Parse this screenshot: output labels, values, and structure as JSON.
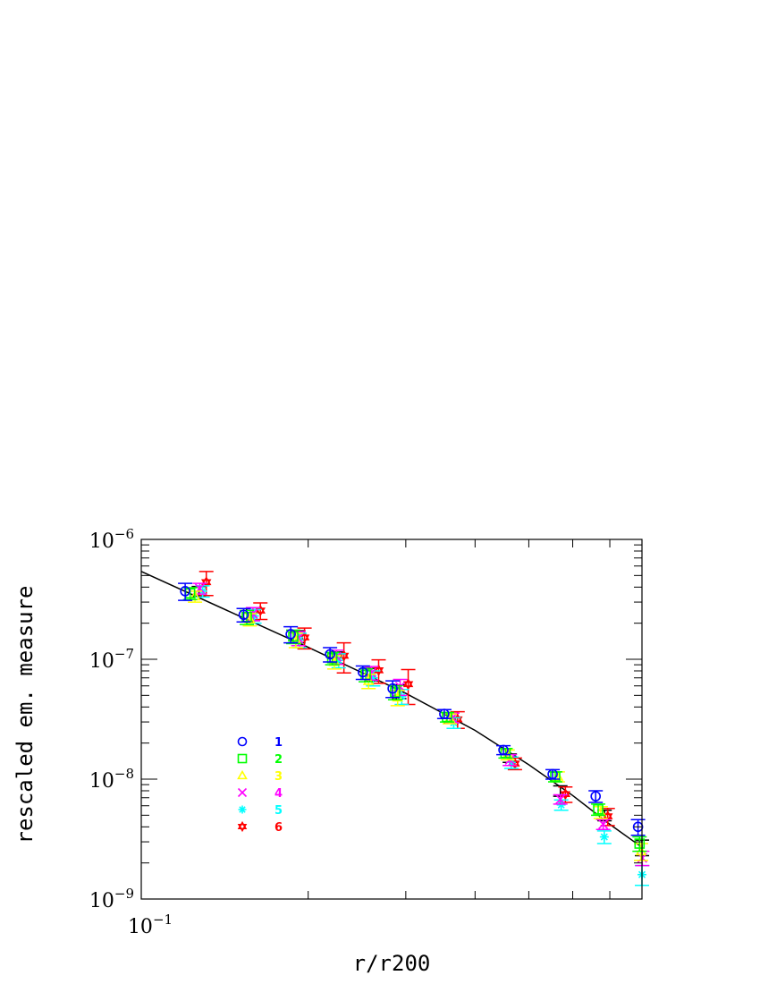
{
  "chart_data": {
    "type": "scatter",
    "xlabel": "r/r200",
    "ylabel": "rescaled  em.  measure",
    "x_scale": "log",
    "y_scale": "log",
    "xlim": [
      0.1,
      0.8
    ],
    "ylim": [
      1e-09,
      1e-06
    ],
    "x_tick_labels": [
      {
        "base": "10",
        "exp": "−1",
        "value": 0.1
      }
    ],
    "y_tick_labels": [
      {
        "base": "10",
        "exp": "−6",
        "value": 1e-06
      },
      {
        "base": "10",
        "exp": "−7",
        "value": 1e-07
      },
      {
        "base": "10",
        "exp": "−8",
        "value": 1e-08
      },
      {
        "base": "10",
        "exp": "−9",
        "value": 1e-09
      }
    ],
    "grid": false,
    "legend_position": "lower-left",
    "series": [
      {
        "name": "1",
        "marker": "circle",
        "color": "#0000ff",
        "points": [
          {
            "x": 0.12,
            "y": 3.7e-07,
            "err": 6e-08
          },
          {
            "x": 0.153,
            "y": 2.35e-07,
            "err": 3e-08
          },
          {
            "x": 0.186,
            "y": 1.62e-07,
            "err": 2.5e-08
          },
          {
            "x": 0.219,
            "y": 1.1e-07,
            "err": 1.5e-08
          },
          {
            "x": 0.251,
            "y": 7.8e-08,
            "err": 1e-08
          },
          {
            "x": 0.284,
            "y": 5.7e-08,
            "err": 9e-09
          },
          {
            "x": 0.352,
            "y": 3.5e-08,
            "err": 3e-09
          },
          {
            "x": 0.45,
            "y": 1.75e-08,
            "err": 1.5e-09
          },
          {
            "x": 0.552,
            "y": 1.1e-08,
            "err": 1e-09
          },
          {
            "x": 0.66,
            "y": 7.2e-09,
            "err": 8e-10
          },
          {
            "x": 0.787,
            "y": 4e-09,
            "err": 6e-10
          }
        ]
      },
      {
        "name": "2",
        "marker": "square",
        "color": "#00ff00",
        "points": [
          {
            "x": 0.1225,
            "y": 3.55e-07,
            "err": 4e-08
          },
          {
            "x": 0.155,
            "y": 2.25e-07,
            "err": 3e-08
          },
          {
            "x": 0.188,
            "y": 1.55e-07,
            "err": 2e-08
          },
          {
            "x": 0.221,
            "y": 1.02e-07,
            "err": 1.2e-08
          },
          {
            "x": 0.254,
            "y": 7.4e-08,
            "err": 9e-09
          },
          {
            "x": 0.287,
            "y": 5.3e-08,
            "err": 7e-09
          },
          {
            "x": 0.356,
            "y": 3.3e-08,
            "err": 3e-09
          },
          {
            "x": 0.454,
            "y": 1.65e-08,
            "err": 1.5e-09
          },
          {
            "x": 0.558,
            "y": 1.05e-08,
            "err": 1e-09
          },
          {
            "x": 0.667,
            "y": 5.6e-09,
            "err": 6e-10
          },
          {
            "x": 0.792,
            "y": 2.9e-09,
            "err": 4e-10
          }
        ]
      },
      {
        "name": "3",
        "marker": "triangle",
        "color": "#ffff00",
        "points": [
          {
            "x": 0.125,
            "y": 3.35e-07,
            "err": 3.5e-08
          },
          {
            "x": 0.157,
            "y": 2.15e-07,
            "err": 2.5e-08
          },
          {
            "x": 0.19,
            "y": 1.45e-07,
            "err": 2e-08
          },
          {
            "x": 0.223,
            "y": 9.5e-08,
            "err": 1.2e-08
          },
          {
            "x": 0.257,
            "y": 6.6e-08,
            "err": 9e-09
          },
          {
            "x": 0.29,
            "y": 4.8e-08,
            "err": 7e-09
          },
          {
            "x": 0.36,
            "y": 3.2e-08,
            "err": 3e-09
          },
          {
            "x": 0.458,
            "y": 1.6e-08,
            "err": 1.5e-09
          },
          {
            "x": 0.564,
            "y": 1.05e-08,
            "err": 1e-09
          },
          {
            "x": 0.674,
            "y": 5.3e-09,
            "err": 6e-10
          },
          {
            "x": 0.797,
            "y": 2.5e-09,
            "err": 4e-10
          }
        ]
      },
      {
        "name": "4",
        "marker": "x",
        "color": "#ff00ff",
        "points": [
          {
            "x": 0.1275,
            "y": 3.9e-07,
            "err": 4e-08
          },
          {
            "x": 0.159,
            "y": 2.4e-07,
            "err": 3e-08
          },
          {
            "x": 0.192,
            "y": 1.5e-07,
            "err": 2e-08
          },
          {
            "x": 0.225,
            "y": 1.05e-07,
            "err": 1.4e-08
          },
          {
            "x": 0.26,
            "y": 7.7e-08,
            "err": 1e-08
          },
          {
            "x": 0.293,
            "y": 5.9e-08,
            "err": 9e-09
          },
          {
            "x": 0.364,
            "y": 3.25e-08,
            "err": 3e-09
          },
          {
            "x": 0.462,
            "y": 1.45e-08,
            "err": 1.5e-09
          },
          {
            "x": 0.57,
            "y": 6.8e-09,
            "err": 6e-10
          },
          {
            "x": 0.681,
            "y": 4.2e-09,
            "err": 4e-10
          },
          {
            "x": 0.801,
            "y": 2.2e-09,
            "err": 3e-10
          }
        ]
      },
      {
        "name": "5",
        "marker": "asterisk",
        "color": "#00ffff",
        "points": [
          {
            "x": 0.129,
            "y": 3.7e-07,
            "err": 4e-08
          },
          {
            "x": 0.16,
            "y": 2.3e-07,
            "err": 3e-08
          },
          {
            "x": 0.193,
            "y": 1.45e-07,
            "err": 2e-08
          },
          {
            "x": 0.227,
            "y": 9.8e-08,
            "err": 1.3e-08
          },
          {
            "x": 0.262,
            "y": 7e-08,
            "err": 1e-08
          },
          {
            "x": 0.295,
            "y": 4.9e-08,
            "err": 7e-09
          },
          {
            "x": 0.366,
            "y": 2.95e-08,
            "err": 3e-09
          },
          {
            "x": 0.465,
            "y": 1.38e-08,
            "err": 1.5e-09
          },
          {
            "x": 0.572,
            "y": 6.1e-09,
            "err": 6e-10
          },
          {
            "x": 0.684,
            "y": 3.3e-09,
            "err": 4e-10
          },
          {
            "x": 0.8,
            "y": 1.6e-09,
            "err": 3e-10
          }
        ]
      },
      {
        "name": "6",
        "marker": "star",
        "color": "#ff0000",
        "points": [
          {
            "x": 0.131,
            "y": 4.4e-07,
            "err": 1e-07
          },
          {
            "x": 0.164,
            "y": 2.55e-07,
            "err": 4e-08
          },
          {
            "x": 0.197,
            "y": 1.52e-07,
            "err": 3e-08
          },
          {
            "x": 0.232,
            "y": 1.07e-07,
            "err": 3e-08
          },
          {
            "x": 0.268,
            "y": 8.1e-08,
            "err": 1.8e-08
          },
          {
            "x": 0.303,
            "y": 6.2e-08,
            "err": 2e-08
          },
          {
            "x": 0.372,
            "y": 3.15e-08,
            "err": 5e-09
          },
          {
            "x": 0.472,
            "y": 1.35e-08,
            "err": 1.5e-09
          },
          {
            "x": 0.582,
            "y": 7.5e-09,
            "err": 1.1e-09
          },
          {
            "x": 0.694,
            "y": 4.9e-09,
            "err": 8e-10
          }
        ]
      }
    ],
    "model_line": {
      "color": "#000000",
      "points": [
        {
          "x": 0.1,
          "y": 5.4e-07
        },
        {
          "x": 0.2,
          "y": 1.26e-07
        },
        {
          "x": 0.3,
          "y": 5.2e-08
        },
        {
          "x": 0.4,
          "y": 2.55e-08
        },
        {
          "x": 0.5,
          "y": 1.32e-08
        },
        {
          "x": 0.6,
          "y": 7.3e-09
        },
        {
          "x": 0.7,
          "y": 4.2e-09
        },
        {
          "x": 0.8,
          "y": 2.7e-09
        }
      ],
      "binned_points": [
        {
          "x": 0.127,
          "y": 3.7e-07,
          "err": 3.5e-08
        },
        {
          "x": 0.159,
          "y": 2.35e-07,
          "err": 2.5e-08
        },
        {
          "x": 0.192,
          "y": 1.55e-07,
          "err": 1.8e-08
        },
        {
          "x": 0.226,
          "y": 1.03e-07,
          "err": 1.2e-08
        },
        {
          "x": 0.26,
          "y": 7.5e-08,
          "err": 9e-09
        },
        {
          "x": 0.292,
          "y": 5.4e-08,
          "err": 7e-09
        },
        {
          "x": 0.362,
          "y": 3.25e-08,
          "err": 3e-09
        },
        {
          "x": 0.462,
          "y": 1.5e-08,
          "err": 1.2e-09
        },
        {
          "x": 0.57,
          "y": 8e-09,
          "err": 8e-10
        },
        {
          "x": 0.685,
          "y": 5e-09,
          "err": 5e-10
        },
        {
          "x": 0.8,
          "y": 2.7e-09,
          "err": 4e-10
        }
      ]
    }
  }
}
